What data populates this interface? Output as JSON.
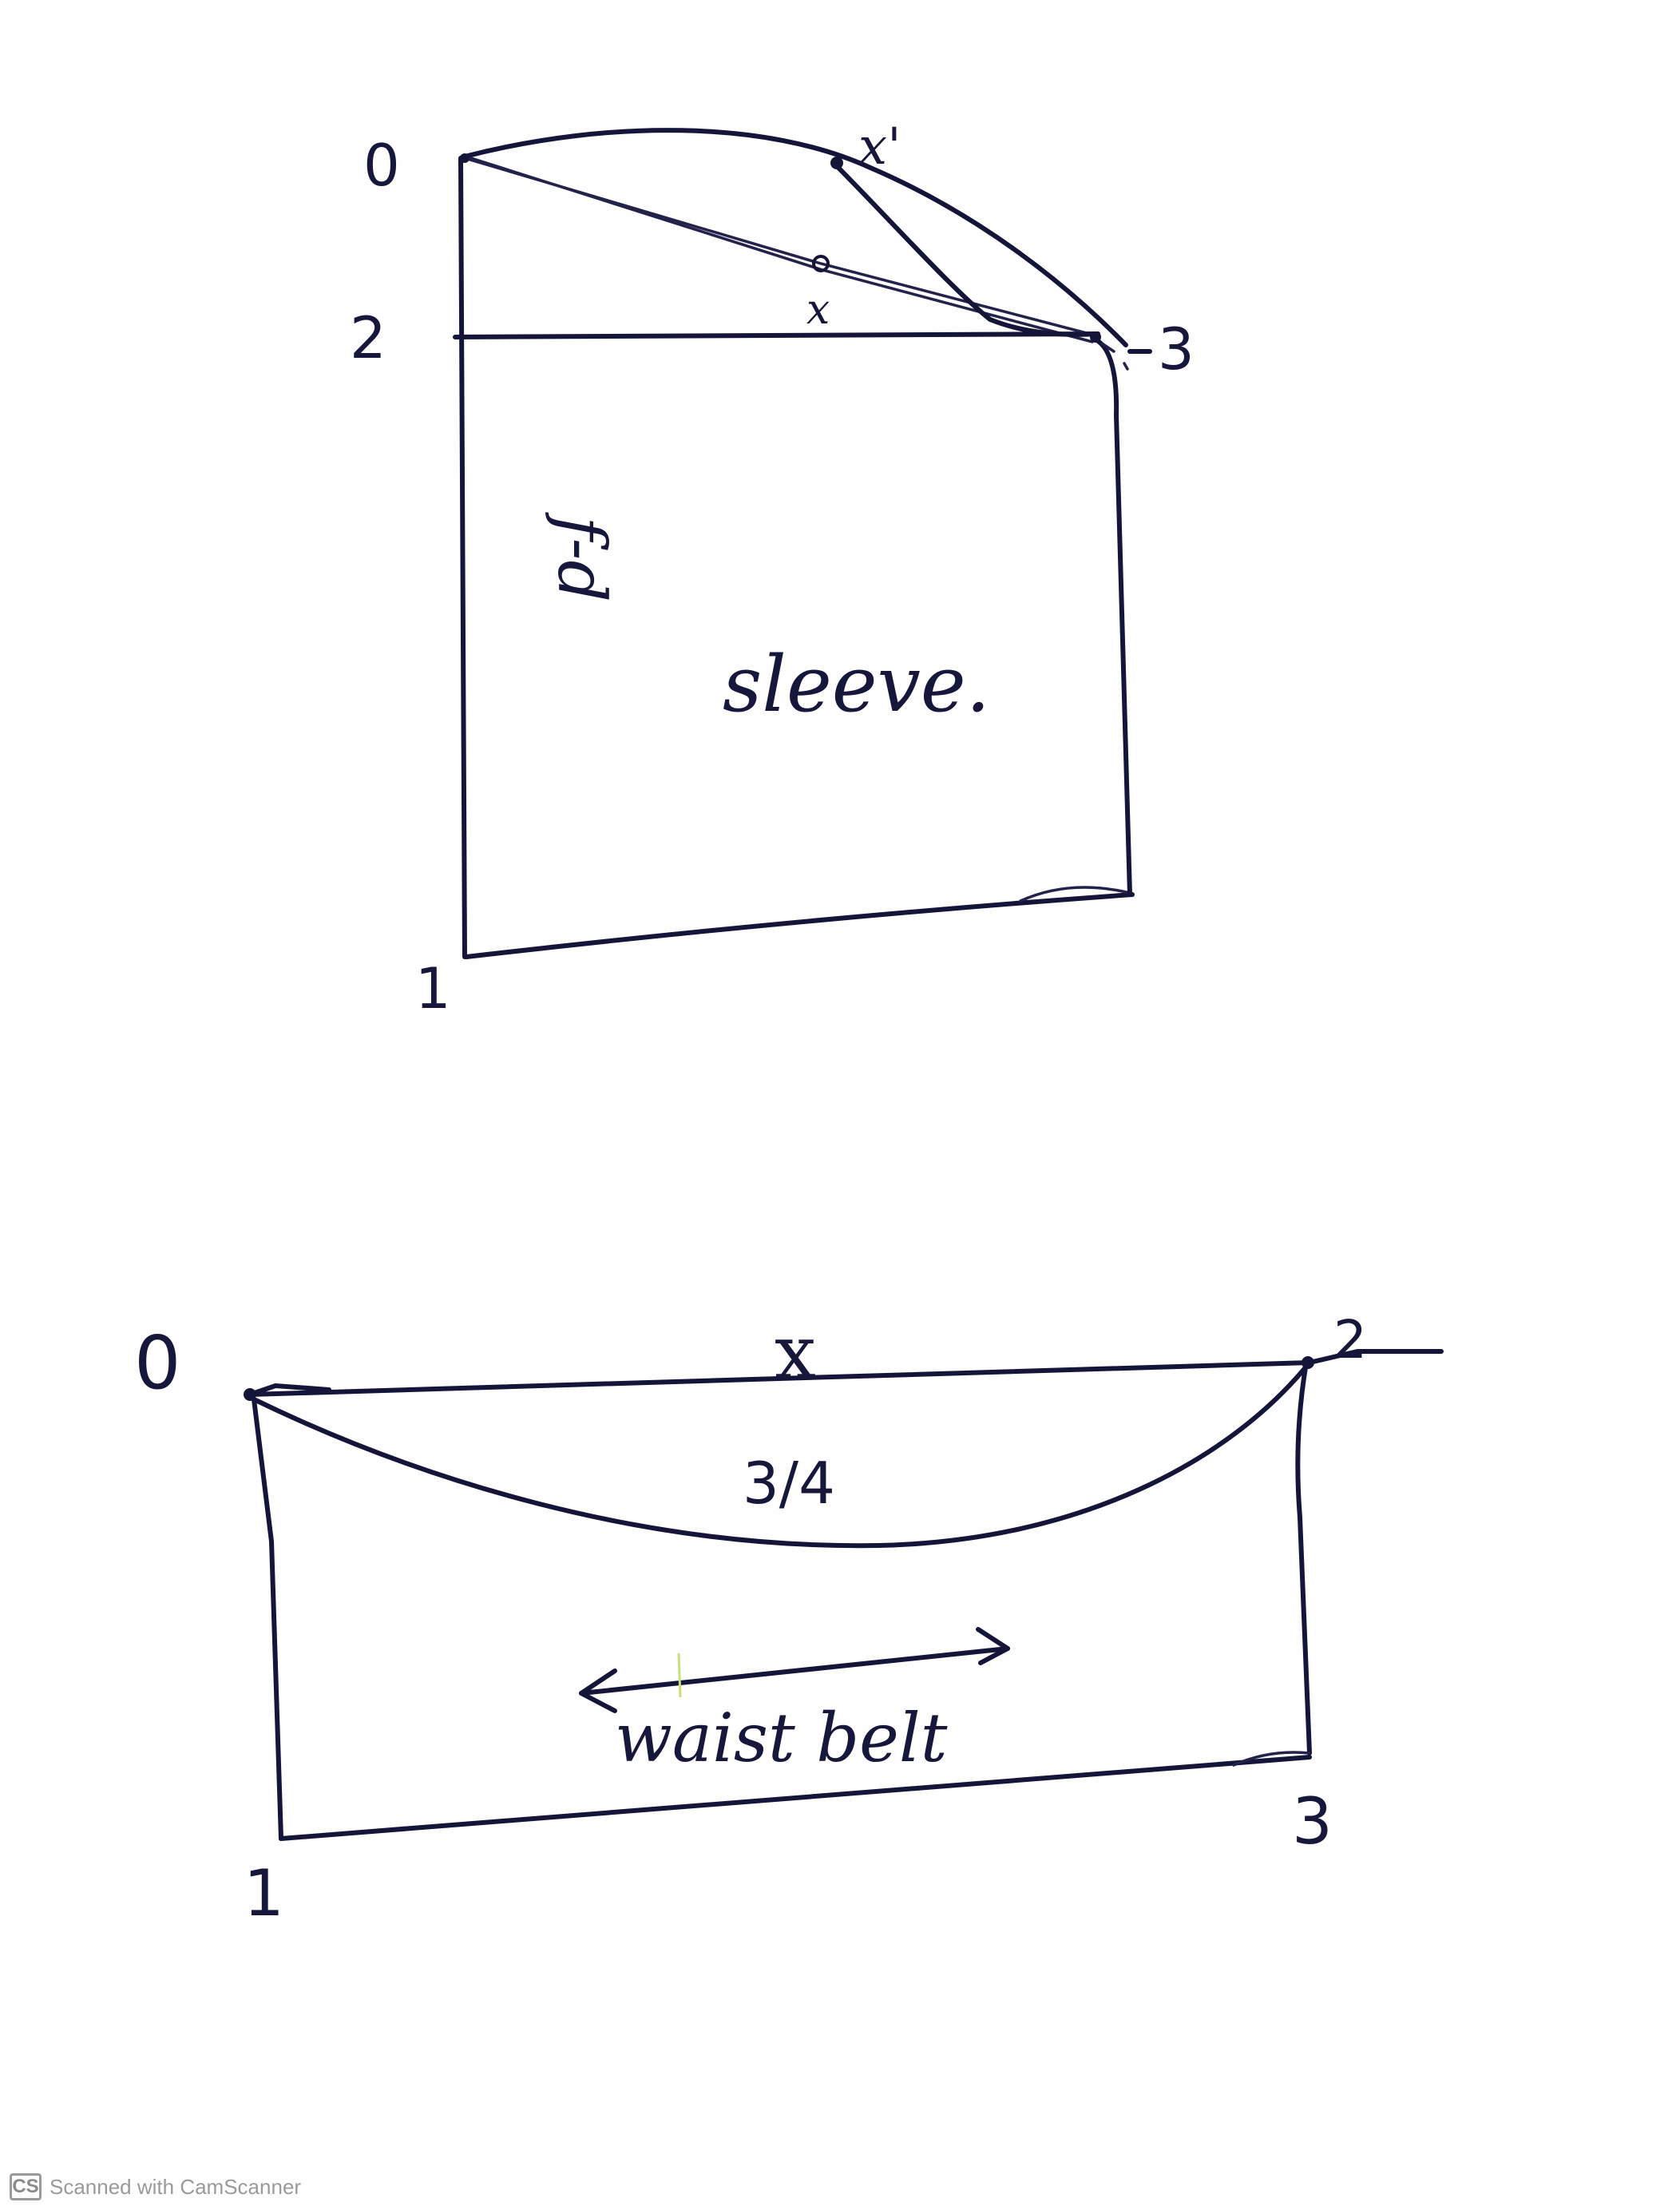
{
  "sleeve_diagram": {
    "label": "sleeve.",
    "side_label": "f-d",
    "points": {
      "p0": "0",
      "p1": "1",
      "p2": "2",
      "p3": "3",
      "px": "x",
      "px_prime": "x'"
    }
  },
  "waist_belt_diagram": {
    "label": "waist belt",
    "fraction": "3/4",
    "points": {
      "p0": "0",
      "p1": "1",
      "p2": "2",
      "p3": "3",
      "px": "x"
    }
  },
  "footer": {
    "logo": "CS",
    "text": "Scanned with CamScanner"
  }
}
